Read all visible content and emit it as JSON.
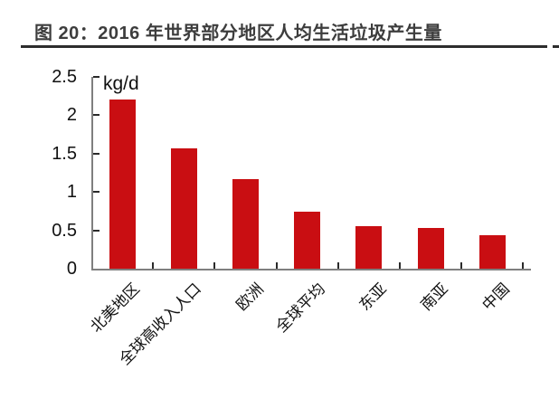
{
  "header": {
    "title": "图 20：2016 年世界部分地区人均生活垃圾产生量"
  },
  "chart_data": {
    "type": "bar",
    "title": "图 20：2016 年世界部分地区人均生活垃圾产生量",
    "categories": [
      "北美地区",
      "全球高收入人口",
      "欧洲",
      "全球平均",
      "东亚",
      "南亚",
      "中国"
    ],
    "values": [
      2.21,
      1.57,
      1.17,
      0.74,
      0.55,
      0.53,
      0.44
    ],
    "xlabel": "",
    "ylabel": "kg/d",
    "ylim": [
      0,
      2.5
    ],
    "yticks": [
      0,
      0.5,
      1,
      1.5,
      2,
      2.5
    ],
    "ytick_labels": [
      "0",
      "0.5",
      "1",
      "1.5",
      "2",
      "2.5"
    ],
    "x_tick_label_rotation_deg": 45,
    "grid": false,
    "legend_position": "none",
    "bar_color": "#c90e12",
    "axis_color": "#7f7f7f",
    "tick_color": "#2a2a2a",
    "text_color": "#111111",
    "title_color": "#3d3d3d",
    "title_rule_color": "#2d2d2d"
  }
}
